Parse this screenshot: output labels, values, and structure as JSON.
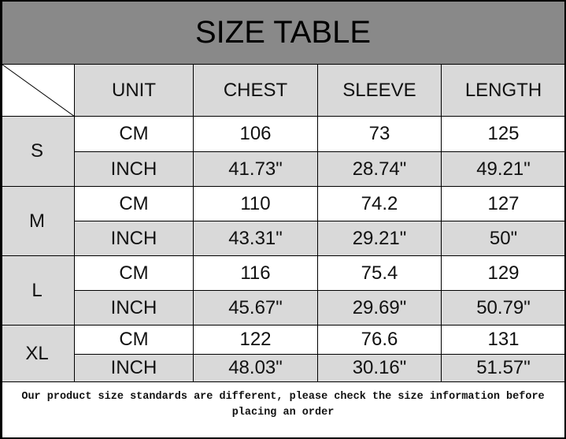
{
  "title": "SIZE TABLE",
  "headers": [
    "UNIT",
    "CHEST",
    "SLEEVE",
    "LENGTH"
  ],
  "sizes": [
    {
      "size": "S",
      "rows": [
        [
          "CM",
          "106",
          "73",
          "125"
        ],
        [
          "INCH",
          "41.73\"",
          "28.74\"",
          "49.21\""
        ]
      ]
    },
    {
      "size": "M",
      "rows": [
        [
          "CM",
          "110",
          "74.2",
          "127"
        ],
        [
          "INCH",
          "43.31\"",
          "29.21\"",
          "50\""
        ]
      ]
    },
    {
      "size": "L",
      "rows": [
        [
          "CM",
          "116",
          "75.4",
          "129"
        ],
        [
          "INCH",
          "45.67\"",
          "29.69\"",
          "50.79\""
        ]
      ]
    },
    {
      "size": "XL",
      "rows": [
        [
          "CM",
          "122",
          "76.6",
          "131"
        ],
        [
          "INCH",
          "48.03\"",
          "30.16\"",
          "51.57\""
        ]
      ]
    }
  ],
  "footer": "Our product size standards are different, please check the size information before placing an order",
  "colors": {
    "title_bg": "#898989",
    "cell_gray": "#d9d9d9"
  }
}
